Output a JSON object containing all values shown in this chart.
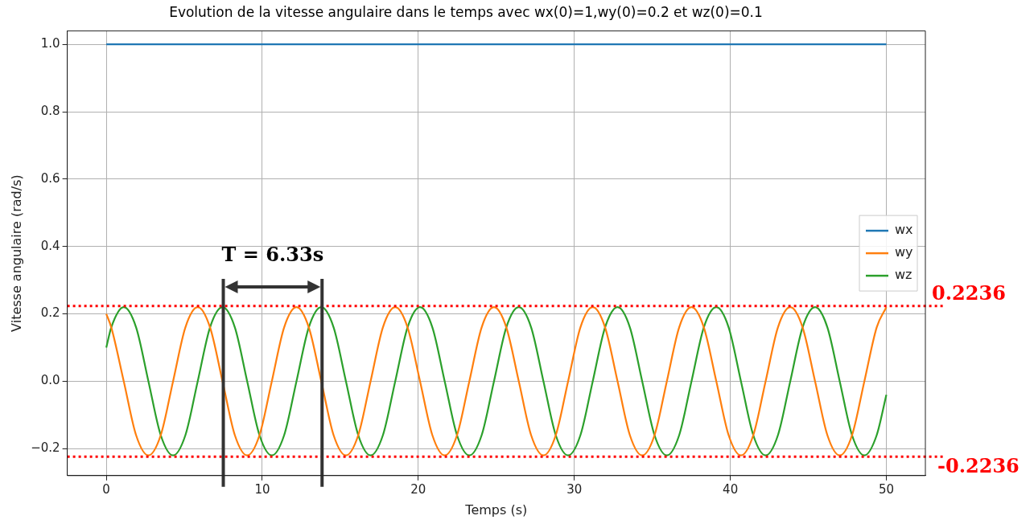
{
  "chart_data": {
    "type": "line",
    "title": "Evolution de la vitesse angulaire dans le temps avec wx(0)=1,wy(0)=0.2 et wz(0)=0.1",
    "xlabel": "Temps (s)",
    "ylabel": "Vitesse angulaire (rad/s)",
    "xlim": [
      -2.5,
      52.5
    ],
    "xticks": [
      0,
      10,
      20,
      30,
      40,
      50
    ],
    "ylim": [
      -0.28,
      1.04
    ],
    "yticks": [
      {
        "value": -0.2,
        "label": "−0.2"
      },
      {
        "value": 0,
        "label": "0.0"
      },
      {
        "value": 0.2,
        "label": "0.2"
      },
      {
        "value": 0.4,
        "label": "0.4"
      },
      {
        "value": 0.6,
        "label": "0.6"
      },
      {
        "value": 0.8,
        "label": "0.8"
      },
      {
        "value": 1,
        "label": "1.0"
      }
    ],
    "grid": true,
    "legend": "center right",
    "x": [
      0,
      0.32,
      1.12,
      1.91,
      2.7,
      3.49,
      4.28,
      5.07,
      5.86,
      6.65,
      7.45,
      8.24,
      9.03,
      9.82,
      10.61,
      11.4,
      12.19,
      12.98,
      13.78,
      14.57,
      15.36,
      16.15,
      16.94,
      17.73,
      18.52,
      19.31,
      20.11,
      20.9,
      21.69,
      22.48,
      23.27,
      24.06,
      24.85,
      25.64,
      26.44,
      27.23,
      28.02,
      28.81,
      29.6,
      30.39,
      31.18,
      31.97,
      32.77,
      33.56,
      34.35,
      35.14,
      35.93,
      36.72,
      37.51,
      38.3,
      39.1,
      39.89,
      40.68,
      41.47,
      42.26,
      43.05,
      43.84,
      44.63,
      45.43,
      46.22,
      47.01,
      47.8,
      48.59,
      49.38,
      50
    ],
    "series": [
      {
        "name": "wx",
        "color": "#1f77b4",
        "x": [
          0,
          50
        ],
        "values": [
          1,
          1
        ]
      },
      {
        "name": "wy",
        "color": "#ff7f0e",
        "values": [
          0.2,
          0.16,
          0,
          -0.16,
          -0.22,
          -0.16,
          0,
          0.16,
          0.22,
          0.16,
          0,
          -0.16,
          -0.22,
          -0.16,
          0,
          0.16,
          0.22,
          0.16,
          0,
          -0.16,
          -0.22,
          -0.16,
          0,
          0.16,
          0.22,
          0.16,
          0,
          -0.16,
          -0.22,
          -0.16,
          0,
          0.16,
          0.22,
          0.16,
          0,
          -0.16,
          -0.22,
          -0.16,
          0,
          0.16,
          0.22,
          0.16,
          0,
          -0.16,
          -0.22,
          -0.16,
          0,
          0.16,
          0.22,
          0.16,
          0,
          -0.16,
          -0.22,
          -0.16,
          0,
          0.16,
          0.22,
          0.16,
          0,
          -0.16,
          -0.22,
          -0.16,
          0,
          0.16,
          0.22
        ]
      },
      {
        "name": "wz",
        "color": "#2ca02c",
        "values": [
          0.1,
          0.16,
          0.22,
          0.16,
          0,
          -0.16,
          -0.22,
          -0.16,
          0,
          0.16,
          0.22,
          0.16,
          0,
          -0.16,
          -0.22,
          -0.16,
          0,
          0.16,
          0.22,
          0.16,
          0,
          -0.16,
          -0.22,
          -0.16,
          0,
          0.16,
          0.22,
          0.16,
          0,
          -0.16,
          -0.22,
          -0.16,
          0,
          0.16,
          0.22,
          0.16,
          0,
          -0.16,
          -0.22,
          -0.16,
          0,
          0.16,
          0.22,
          0.16,
          0,
          -0.16,
          -0.22,
          -0.16,
          0,
          0.16,
          0.22,
          0.16,
          0,
          -0.16,
          -0.22,
          -0.16,
          0,
          0.16,
          0.22,
          0.16,
          0,
          -0.16,
          -0.22,
          -0.16,
          -0.04
        ]
      }
    ],
    "ref_lines": [
      {
        "axis": "y",
        "value": 0.2236,
        "label": "0.2236",
        "color": "#ff0000",
        "line_style": "dotted"
      },
      {
        "axis": "y",
        "value": -0.2236,
        "label": "-0.2236",
        "color": "#ff0000",
        "line_style": "dotted"
      },
      {
        "axis": "x",
        "value": 7.5,
        "color": "#333333",
        "line_style": "solid"
      },
      {
        "axis": "x",
        "value": 13.83,
        "color": "#333333",
        "line_style": "solid"
      }
    ],
    "annotations": [
      "T = 6.33s"
    ]
  }
}
